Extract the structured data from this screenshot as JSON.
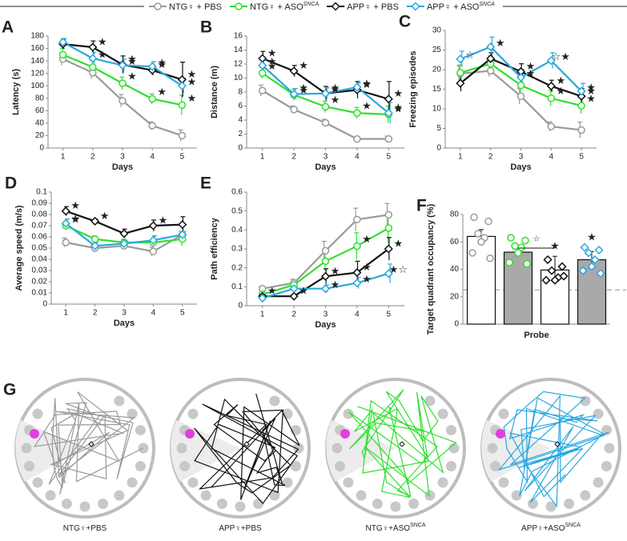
{
  "legend": [
    {
      "name": "NTG♀ + PBS",
      "color": "#9a9a9a",
      "marker": "circle"
    },
    {
      "name": "NTG♀ + ASO",
      "name_sup": "SNCA",
      "color": "#2fe02f",
      "marker": "circle"
    },
    {
      "name": "APP♀ + PBS",
      "color": "#111111",
      "marker": "diamond"
    },
    {
      "name": "APP♀ + ASO",
      "name_sup": "SNCA",
      "color": "#2aa8e0",
      "marker": "diamond"
    }
  ],
  "chart_data": [
    {
      "panel": "A",
      "type": "line",
      "ylabel": "Latency (s)",
      "xlabel": "Days",
      "x": [
        1,
        2,
        3,
        4,
        5
      ],
      "xlim": [
        0.5,
        5.5
      ],
      "ylim": [
        0,
        180
      ],
      "yticks": [
        0,
        20,
        40,
        60,
        80,
        100,
        120,
        140,
        160,
        180
      ],
      "series": [
        {
          "values": [
            143,
            121,
            76,
            36,
            20
          ],
          "errors": [
            10,
            10,
            10,
            6,
            9
          ],
          "markers": [
            null,
            null,
            null,
            null,
            null
          ]
        },
        {
          "values": [
            150,
            130,
            104,
            79,
            69
          ],
          "errors": [
            10,
            10,
            10,
            8,
            16
          ],
          "markers": [
            null,
            null,
            "★",
            "★",
            "★"
          ]
        },
        {
          "values": [
            167,
            162,
            134,
            125,
            110
          ],
          "errors": [
            8,
            10,
            14,
            8,
            28
          ],
          "markers": [
            null,
            "★",
            "★",
            "★",
            "★"
          ]
        },
        {
          "values": [
            170,
            144,
            133,
            131,
            100
          ],
          "errors": [
            6,
            10,
            10,
            8,
            12
          ],
          "markers": [
            null,
            "★",
            "★",
            "★",
            "★"
          ]
        }
      ]
    },
    {
      "panel": "B",
      "type": "line",
      "ylabel": "Distance (m)",
      "xlabel": "Days",
      "x": [
        1,
        2,
        3,
        4,
        5
      ],
      "xlim": [
        0.5,
        5.5
      ],
      "ylim": [
        0,
        16
      ],
      "yticks": [
        0,
        2,
        4,
        6,
        8,
        10,
        12,
        14,
        16
      ],
      "series": [
        {
          "values": [
            8.2,
            5.5,
            3.6,
            1.3,
            1.3
          ],
          "errors": [
            0.8,
            0.5,
            0.5,
            0.2,
            0.4
          ],
          "markers": [
            null,
            null,
            null,
            null,
            null
          ]
        },
        {
          "values": [
            10.7,
            7.6,
            5.9,
            5.0,
            4.8
          ],
          "errors": [
            0.8,
            0.8,
            0.8,
            0.8,
            1.2
          ],
          "markers": [
            "★",
            "★",
            "★",
            "★",
            "★"
          ]
        },
        {
          "values": [
            12.8,
            11.0,
            7.8,
            8.3,
            7.0
          ],
          "errors": [
            1.0,
            0.8,
            1.0,
            1.2,
            2.5
          ],
          "markers": [
            "★",
            "★",
            "★",
            "★",
            "★"
          ]
        },
        {
          "values": [
            11.8,
            7.7,
            7.8,
            8.7,
            5.0
          ],
          "errors": [
            0.8,
            0.8,
            0.8,
            0.6,
            1.5
          ],
          "markers": [
            "★",
            "★",
            "★",
            "★",
            "★"
          ]
        }
      ]
    },
    {
      "panel": "C",
      "type": "line",
      "ylabel": "Freezing episodes",
      "xlabel": "Days",
      "x": [
        1,
        2,
        3,
        4,
        5
      ],
      "xlim": [
        0.5,
        5.5
      ],
      "ylim": [
        0,
        30
      ],
      "yticks": [
        0,
        5,
        10,
        15,
        20,
        25,
        30
      ],
      "series": [
        {
          "values": [
            19.0,
            19.7,
            13.2,
            5.5,
            4.6
          ],
          "errors": [
            2,
            1.5,
            2,
            1.2,
            2
          ],
          "markers": [
            null,
            null,
            null,
            null,
            null
          ]
        },
        {
          "values": [
            19.2,
            21.5,
            16.0,
            12.7,
            10.8
          ],
          "errors": [
            2,
            2,
            2,
            2,
            2
          ],
          "markers": [
            null,
            null,
            null,
            "★",
            "★"
          ]
        },
        {
          "values": [
            16.5,
            22.8,
            19.5,
            15.8,
            13.2
          ],
          "errors": [
            2,
            1.5,
            2,
            1.5,
            2
          ],
          "markers": [
            null,
            null,
            "★",
            "★",
            "★"
          ]
        },
        {
          "values": [
            22.7,
            25.8,
            18.0,
            22.3,
            14.5
          ],
          "errors": [
            2,
            2.5,
            2,
            2,
            2
          ],
          "markers": [
            "☆",
            "★",
            "★",
            "☆★",
            "★"
          ]
        }
      ]
    },
    {
      "panel": "D",
      "type": "line",
      "ylabel": "Average speed (m/s)",
      "xlabel": "Days",
      "x": [
        1,
        2,
        3,
        4,
        5
      ],
      "xlim": [
        0.5,
        5.5
      ],
      "ylim": [
        0,
        0.1
      ],
      "yticks": [
        0,
        0.01,
        0.02,
        0.03,
        0.04,
        0.05,
        0.06,
        0.07,
        0.08,
        0.09,
        0.1
      ],
      "series": [
        {
          "values": [
            0.055,
            0.05,
            0.052,
            0.047,
            0.062
          ],
          "errors": [
            0.004,
            0.003,
            0.003,
            0.004,
            0.003
          ],
          "markers": [
            null,
            null,
            null,
            null,
            null
          ]
        },
        {
          "values": [
            0.07,
            0.058,
            0.055,
            0.055,
            0.058
          ],
          "errors": [
            0.003,
            0.003,
            0.003,
            0.003,
            0.006
          ],
          "markers": [
            "★",
            null,
            null,
            null,
            null
          ]
        },
        {
          "values": [
            0.083,
            0.074,
            0.063,
            0.07,
            0.071
          ],
          "errors": [
            0.004,
            0.002,
            0.004,
            0.005,
            0.007
          ],
          "markers": [
            "★",
            "★",
            null,
            "★",
            null
          ]
        },
        {
          "values": [
            0.072,
            0.052,
            0.054,
            0.057,
            0.062
          ],
          "errors": [
            0.004,
            0.003,
            0.003,
            0.004,
            0.003
          ],
          "markers": [
            "★",
            null,
            null,
            null,
            null
          ]
        }
      ]
    },
    {
      "panel": "E",
      "type": "line",
      "ylabel": "Path efficiency",
      "xlabel": "Days",
      "x": [
        1,
        2,
        3,
        4,
        5
      ],
      "xlim": [
        0.5,
        5.5
      ],
      "ylim": [
        0,
        0.6
      ],
      "yticks": [
        0,
        0.1,
        0.2,
        0.3,
        0.4,
        0.5,
        0.6
      ],
      "series": [
        {
          "values": [
            0.09,
            0.12,
            0.29,
            0.455,
            0.48
          ],
          "errors": [
            0.01,
            0.02,
            0.05,
            0.06,
            0.06
          ],
          "markers": [
            null,
            null,
            null,
            null,
            null
          ]
        },
        {
          "values": [
            0.06,
            0.11,
            0.235,
            0.315,
            0.41
          ],
          "errors": [
            0.01,
            0.02,
            0.05,
            0.07,
            0.08
          ],
          "markers": [
            null,
            null,
            null,
            "★",
            null
          ]
        },
        {
          "values": [
            0.05,
            0.05,
            0.155,
            0.175,
            0.3
          ],
          "errors": [
            0.01,
            0.01,
            0.04,
            0.06,
            0.06
          ],
          "markers": [
            "★",
            "★",
            "★",
            "★",
            "★"
          ]
        },
        {
          "values": [
            0.04,
            0.09,
            0.09,
            0.12,
            0.17
          ],
          "errors": [
            0.01,
            0.01,
            0.02,
            0.03,
            0.05
          ],
          "markers": [
            null,
            null,
            "★",
            "★",
            "★☆"
          ]
        }
      ]
    },
    {
      "panel": "F",
      "type": "bar",
      "ylabel": "Target quadrant occupancy (%)",
      "xlabel": "Probe",
      "ylim": [
        0,
        80
      ],
      "yticks": [
        0,
        20,
        40,
        60,
        80
      ],
      "reference_line": 25,
      "bracket_label": "☆",
      "values": [
        64,
        52.5,
        39.5,
        47
      ],
      "errors": [
        5,
        3,
        10,
        6
      ],
      "colors": [
        "#ffffff",
        "#a9a9a9",
        "#ffffff",
        "#a9a9a9"
      ],
      "points": [
        [
          78,
          75,
          66,
          63,
          60,
          52,
          48
        ],
        [
          63,
          61,
          57,
          56,
          52,
          45,
          44
        ],
        [
          47,
          42,
          39,
          34,
          32,
          32,
          35
        ],
        [
          56,
          54,
          52,
          47,
          42,
          39,
          37
        ]
      ],
      "markers": [
        null,
        null,
        "★",
        "★"
      ]
    }
  ],
  "panel_g": {
    "panel": "G",
    "labels": [
      {
        "text": "NTG♀+PBS"
      },
      {
        "text": "APP♀+PBS"
      },
      {
        "text": "NTG♀+ASO",
        "sup": "SNCA"
      },
      {
        "text": "APP♀+ASO",
        "sup": "SNCA"
      }
    ]
  }
}
